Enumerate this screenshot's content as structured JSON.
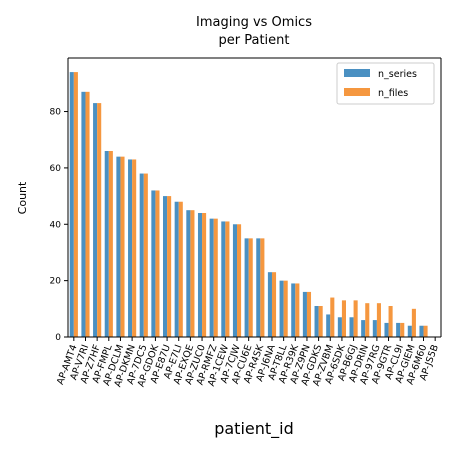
{
  "chart_data": {
    "type": "bar",
    "title_line1": "Imaging vs Omics",
    "title_line2": "per Patient",
    "xlabel": "patient_id",
    "ylabel": "Count",
    "ylim": [
      0,
      99
    ],
    "yticks": [
      0,
      20,
      40,
      60,
      80
    ],
    "legend_position": "top-right",
    "categories": [
      "AP-AMT4",
      "AP-V7RI",
      "AP-Z7HF",
      "AP-FMPL",
      "AP-DCLM",
      "AP-DKMN",
      "AP-7DC5",
      "AP-GDOK",
      "AP-E87U",
      "AP-E7LI",
      "AP-EXQE",
      "AP-ZUC0",
      "AP-RMFZ",
      "AP-1CEW",
      "AP-7CJW",
      "AP-CU6E",
      "AP-R4SK",
      "AP-J6NA",
      "AP-T8LL",
      "AP-R39K",
      "AP-Z9PN",
      "AP-GDKS",
      "AP-ZVBM",
      "AP-6SDK",
      "AP-B6GJ",
      "AP-DRIN",
      "AP-97RG",
      "AP-9GTR",
      "AP-CL9I",
      "AP-GIEM",
      "AP-6M60",
      "AP-JS5B"
    ],
    "series": [
      {
        "name": "n_series",
        "color": "#4a90c2",
        "values": [
          94,
          87,
          83,
          66,
          64,
          63,
          58,
          52,
          50,
          48,
          45,
          44,
          42,
          41,
          40,
          35,
          35,
          23,
          20,
          19,
          16,
          11,
          8,
          7,
          7,
          6,
          6,
          5,
          5,
          4,
          4,
          0
        ]
      },
      {
        "name": "n_files",
        "color": "#f5973f",
        "values": [
          94,
          87,
          83,
          66,
          64,
          63,
          58,
          52,
          50,
          48,
          45,
          44,
          42,
          41,
          40,
          35,
          35,
          23,
          20,
          19,
          16,
          11,
          14,
          13,
          13,
          12,
          12,
          11,
          5,
          10,
          4,
          0
        ]
      }
    ]
  }
}
